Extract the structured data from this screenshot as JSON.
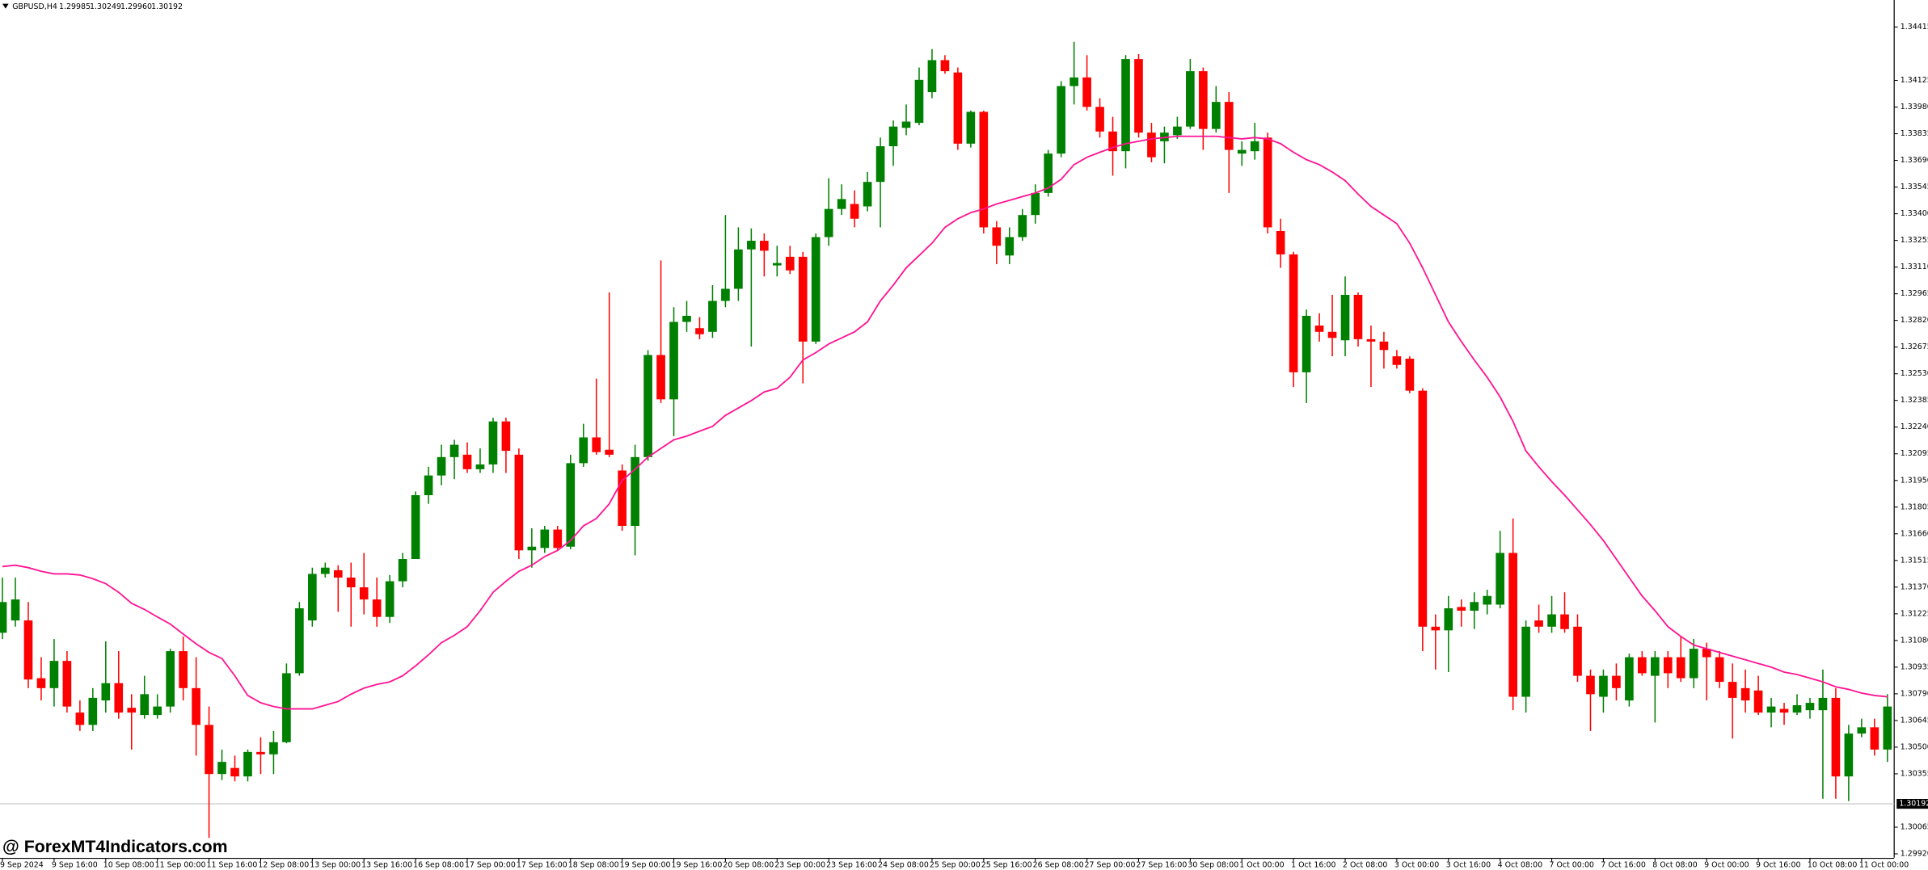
{
  "chart_data": {
    "type": "candlestick",
    "symbol": "GBPUSD,H4",
    "header_values": [
      "1.29985",
      "1.30249",
      "1.29960",
      "1.30192"
    ],
    "watermark": "@ ForexMT4Indicators.com",
    "up_color": "#008000",
    "down_color": "#ff0000",
    "categories": [
      "9 Sep 2024",
      null,
      null,
      null,
      "9 Sep 16:00",
      null,
      null,
      null,
      "10 Sep 08:00",
      null,
      null,
      null,
      "11 Sep 00:00",
      null,
      null,
      null,
      "11 Sep 16:00",
      null,
      null,
      null,
      "12 Sep 08:00",
      null,
      null,
      null,
      "13 Sep 00:00",
      null,
      null,
      null,
      "13 Sep 16:00",
      null,
      null,
      null,
      "16 Sep 08:00",
      null,
      null,
      null,
      "17 Sep 00:00",
      null,
      null,
      null,
      "17 Sep 16:00",
      null,
      null,
      null,
      "18 Sep 08:00",
      null,
      null,
      null,
      "19 Sep 00:00",
      null,
      null,
      null,
      "19 Sep 16:00",
      null,
      null,
      null,
      "20 Sep 08:00",
      null,
      null,
      null,
      "23 Sep 00:00",
      null,
      null,
      null,
      "23 Sep 16:00",
      null,
      null,
      null,
      "24 Sep 08:00",
      null,
      null,
      null,
      "25 Sep 00:00",
      null,
      null,
      null,
      "25 Sep 16:00",
      null,
      null,
      null,
      "26 Sep 08:00",
      null,
      null,
      null,
      "27 Sep 00:00",
      null,
      null,
      null,
      "27 Sep 16:00",
      null,
      null,
      null,
      "30 Sep 08:00",
      null,
      null,
      null,
      "1 Oct 00:00",
      null,
      null,
      null,
      "1 Oct 16:00",
      null,
      null,
      null,
      "2 Oct 08:00",
      null,
      null,
      null,
      "3 Oct 00:00",
      null,
      null,
      null,
      "3 Oct 16:00",
      null,
      null,
      null,
      "4 Oct 08:00",
      null,
      null,
      null,
      "7 Oct 00:00",
      null,
      null,
      null,
      "7 Oct 16:00",
      null,
      null,
      null,
      "8 Oct 08:00",
      null,
      null,
      null,
      "9 Oct 00:00",
      null,
      null,
      null,
      "9 Oct 16:00",
      null,
      null,
      null,
      "10 Oct 08:00",
      null,
      null,
      null,
      "11 Oct 00:00",
      null,
      null
    ],
    "open": [
      1.31122,
      1.31189,
      1.31189,
      1.30875,
      1.30821,
      1.30969,
      1.30688,
      1.30621,
      1.30754,
      1.30848,
      1.30714,
      1.30675,
      1.30675,
      1.30721,
      1.31022,
      1.30821,
      1.30621,
      1.30354,
      1.30387,
      1.30341,
      1.30474,
      1.30461,
      1.30527,
      1.30902,
      1.31189,
      1.31442,
      1.31462,
      1.31422,
      1.31369,
      1.31303,
      1.31208,
      1.31402,
      1.31523,
      1.3187,
      1.31977,
      1.32077,
      1.3209,
      1.32011,
      1.32037,
      1.32271,
      1.3209,
      1.3157,
      1.31583,
      1.31683,
      1.3159,
      1.32044,
      1.32184,
      1.32117,
      1.32004,
      1.31703,
      1.32077,
      1.32632,
      1.32391,
      1.32812,
      1.32778,
      1.32758,
      1.32926,
      1.32992,
      1.33206,
      1.33253,
      1.33119,
      1.33166,
      1.33166,
      1.32705,
      1.33273,
      1.33426,
      1.33453,
      1.3344,
      1.33573,
      1.33767,
      1.33867,
      1.33894,
      1.34061,
      1.34235,
      1.34168,
      1.33781,
      1.33954,
      1.33326,
      1.33173,
      1.33273,
      1.33393,
      1.33513,
      1.33727,
      1.34094,
      1.34141,
      1.33981,
      1.33847,
      1.3374,
      1.34241,
      1.33841,
      1.33794,
      1.33827,
      1.33874,
      1.34175,
      1.33861,
      1.34008,
      1.33727,
      1.3374,
      1.33814,
      1.33306,
      1.33179,
      1.32538,
      1.32792,
      1.32758,
      1.32712,
      1.32959,
      1.32718,
      1.32705,
      1.32625,
      1.32612,
      1.32438,
      1.31155,
      1.31135,
      1.31262,
      1.31242,
      1.31275,
      1.31275,
      1.31556,
      1.30774,
      1.31189,
      1.31155,
      1.31222,
      1.31155,
      1.30888,
      1.30774,
      1.30888,
      1.30754,
      1.30989,
      1.30888,
      1.30989,
      1.30989,
      1.30875,
      1.31035,
      1.30989,
      1.30855,
      1.30821,
      1.30808,
      1.30688,
      1.30708,
      1.30688,
      1.30701,
      1.30701,
      1.30768,
      1.30341,
      1.30574,
      1.30608,
      1.30487
    ],
    "high": [
      1.31422,
      1.31422,
      1.31289,
      1.30989,
      1.31088,
      1.31022,
      1.30754,
      1.30821,
      1.31075,
      1.31022,
      1.30788,
      1.30888,
      1.30788,
      1.31035,
      1.31102,
      1.30989,
      1.30721,
      1.30487,
      1.30454,
      1.30487,
      1.30554,
      1.30588,
      1.30955,
      1.31289,
      1.31476,
      1.31503,
      1.31489,
      1.31503,
      1.31556,
      1.31422,
      1.31436,
      1.31556,
      1.3189,
      1.32024,
      1.32144,
      1.32171,
      1.32157,
      1.32124,
      1.32291,
      1.32291,
      1.32124,
      1.3169,
      1.31703,
      1.31703,
      1.3209,
      1.32258,
      1.32504,
      1.32972,
      1.32037,
      1.32144,
      1.32659,
      1.33146,
      1.32892,
      1.32926,
      1.32838,
      1.33012,
      1.33393,
      1.33326,
      1.3332,
      1.33293,
      1.33226,
      1.33226,
      1.33193,
      1.33293,
      1.33593,
      1.3356,
      1.33527,
      1.33627,
      1.33814,
      1.33907,
      1.33994,
      1.34195,
      1.34295,
      1.34262,
      1.34195,
      1.33961,
      1.33961,
      1.3336,
      1.33326,
      1.33426,
      1.3356,
      1.33747,
      1.34121,
      1.34335,
      1.34262,
      1.34028,
      1.33927,
      1.34262,
      1.34268,
      1.33894,
      1.33874,
      1.33927,
      1.34241,
      1.34195,
      1.34094,
      1.34061,
      1.33794,
      1.33894,
      1.33841,
      1.33373,
      1.33193,
      1.32879,
      1.32859,
      1.32959,
      1.33059,
      1.32972,
      1.32792,
      1.32758,
      1.32659,
      1.32625,
      1.32451,
      1.31222,
      1.31322,
      1.31303,
      1.31342,
      1.31356,
      1.31676,
      1.31743,
      1.31189,
      1.31275,
      1.31322,
      1.31342,
      1.31222,
      1.30922,
      1.30922,
      1.30955,
      1.31008,
      1.31022,
      1.31022,
      1.31022,
      1.31102,
      1.31088,
      1.31068,
      1.31022,
      1.30955,
      1.30922,
      1.30888,
      1.30768,
      1.30741,
      1.30788,
      1.30768,
      1.30922,
      1.30821,
      1.30621,
      1.30655,
      1.30655,
      1.30788
    ],
    "low": [
      1.31088,
      1.31155,
      1.30821,
      1.30754,
      1.30721,
      1.30688,
      1.30588,
      1.30588,
      1.30688,
      1.30655,
      1.30487,
      1.30655,
      1.30655,
      1.30688,
      1.30754,
      1.30454,
      1.30007,
      1.30321,
      1.30314,
      1.30314,
      1.30354,
      1.30354,
      1.30521,
      1.30888,
      1.31155,
      1.31422,
      1.31236,
      1.31155,
      1.31222,
      1.31155,
      1.31175,
      1.31369,
      1.31523,
      1.31823,
      1.31924,
      1.31957,
      1.31991,
      1.31991,
      1.31991,
      1.31991,
      1.31523,
      1.31476,
      1.31556,
      1.3157,
      1.31576,
      1.32024,
      1.3209,
      1.32077,
      1.31676,
      1.31543,
      1.32057,
      1.32371,
      1.32191,
      1.32758,
      1.32718,
      1.32725,
      1.32892,
      1.32926,
      1.32678,
      1.33059,
      1.33059,
      1.33072,
      1.32478,
      1.32692,
      1.33226,
      1.33393,
      1.33326,
      1.33413,
      1.33326,
      1.3366,
      1.33827,
      1.33881,
      1.34028,
      1.34161,
      1.33747,
      1.3376,
      1.33293,
      1.33126,
      1.33126,
      1.33253,
      1.33346,
      1.33493,
      1.33707,
      1.33994,
      1.33961,
      1.33814,
      1.33607,
      1.33647,
      1.33814,
      1.3368,
      1.33674,
      1.33807,
      1.33861,
      1.33747,
      1.33841,
      1.33513,
      1.3366,
      1.33694,
      1.33293,
      1.33106,
      1.32458,
      1.32371,
      1.32705,
      1.32625,
      1.32625,
      1.32678,
      1.32458,
      1.32558,
      1.32558,
      1.32424,
      1.31022,
      1.30922,
      1.30908,
      1.31155,
      1.31142,
      1.31222,
      1.31255,
      1.30701,
      1.30688,
      1.31122,
      1.31122,
      1.31122,
      1.30855,
      1.30588,
      1.30688,
      1.30754,
      1.30721,
      1.30888,
      1.30634,
      1.30821,
      1.30855,
      1.30821,
      1.30754,
      1.30821,
      1.30547,
      1.30688,
      1.30675,
      1.30608,
      1.30621,
      1.30675,
      1.30655,
      1.3022,
      1.3022,
      1.30207,
      1.30554,
      1.30454,
      1.3042
    ],
    "close": [
      1.31289,
      1.31303,
      1.30868,
      1.30821,
      1.30969,
      1.30721,
      1.30621,
      1.30768,
      1.30848,
      1.30688,
      1.30688,
      1.30788,
      1.30721,
      1.31022,
      1.30821,
      1.30621,
      1.30354,
      1.3042,
      1.30341,
      1.30474,
      1.30461,
      1.30527,
      1.30902,
      1.31255,
      1.31442,
      1.31476,
      1.31422,
      1.31369,
      1.31303,
      1.31208,
      1.31402,
      1.31523,
      1.3187,
      1.31977,
      1.32077,
      1.32144,
      1.32011,
      1.32037,
      1.32271,
      1.32111,
      1.3157,
      1.3159,
      1.31683,
      1.31583,
      1.32044,
      1.32184,
      1.32104,
      1.3209,
      1.31703,
      1.32077,
      1.32632,
      1.32391,
      1.32812,
      1.32845,
      1.32745,
      1.32926,
      1.32992,
      1.33206,
      1.33253,
      1.33199,
      1.33132,
      1.33092,
      1.32705,
      1.33273,
      1.33426,
      1.3348,
      1.33373,
      1.33573,
      1.33767,
      1.33874,
      1.33901,
      1.34128,
      1.34235,
      1.34175,
      1.33781,
      1.33954,
      1.33326,
      1.33226,
      1.33273,
      1.33393,
      1.33513,
      1.33727,
      1.34094,
      1.34141,
      1.33981,
      1.33847,
      1.3374,
      1.34241,
      1.33841,
      1.33707,
      1.33841,
      1.33874,
      1.34175,
      1.33861,
      1.34008,
      1.33747,
      1.33747,
      1.33794,
      1.33326,
      1.33179,
      1.32538,
      1.32845,
      1.32758,
      1.32725,
      1.32959,
      1.32718,
      1.32705,
      1.32659,
      1.32578,
      1.32438,
      1.31155,
      1.31135,
      1.31255,
      1.31242,
      1.31289,
      1.31322,
      1.31556,
      1.30774,
      1.31155,
      1.31155,
      1.31222,
      1.31142,
      1.30888,
      1.30788,
      1.30888,
      1.30821,
      1.30989,
      1.30902,
      1.30989,
      1.30902,
      1.30875,
      1.31035,
      1.30989,
      1.30855,
      1.30768,
      1.30754,
      1.30688,
      1.30721,
      1.30688,
      1.30728,
      1.30741,
      1.30768,
      1.30341,
      1.30574,
      1.30608,
      1.30487,
      1.30721
    ],
    "ma": {
      "color": "#ff1493",
      "values": [
        1.31482,
        1.31489,
        1.31476,
        1.31456,
        1.31442,
        1.31442,
        1.31436,
        1.31416,
        1.31389,
        1.31342,
        1.31282,
        1.31249,
        1.31208,
        1.31169,
        1.31115,
        1.31062,
        1.31015,
        1.30982,
        1.30888,
        1.30781,
        1.30741,
        1.30721,
        1.30708,
        1.30708,
        1.30708,
        1.30728,
        1.30748,
        1.30788,
        1.30821,
        1.30841,
        1.30855,
        1.30888,
        1.30942,
        1.31002,
        1.31068,
        1.31108,
        1.31155,
        1.31242,
        1.31342,
        1.31402,
        1.31456,
        1.31489,
        1.31536,
        1.3157,
        1.31623,
        1.31703,
        1.31743,
        1.31823,
        1.3195,
        1.32011,
        1.32077,
        1.32124,
        1.32171,
        1.32191,
        1.32218,
        1.32244,
        1.32304,
        1.32344,
        1.32384,
        1.32431,
        1.32451,
        1.32511,
        1.32605,
        1.32645,
        1.32692,
        1.32725,
        1.32758,
        1.32812,
        1.32926,
        1.33012,
        1.33106,
        1.33173,
        1.3324,
        1.33326,
        1.33373,
        1.33406,
        1.33426,
        1.33453,
        1.33473,
        1.33493,
        1.33513,
        1.3354,
        1.33587,
        1.33667,
        1.33707,
        1.33734,
        1.3376,
        1.33781,
        1.33794,
        1.33807,
        1.33814,
        1.33821,
        1.33821,
        1.33821,
        1.33821,
        1.33814,
        1.33807,
        1.33814,
        1.33807,
        1.33781,
        1.33734,
        1.33694,
        1.33667,
        1.33627,
        1.3358,
        1.33507,
        1.3344,
        1.33393,
        1.33346,
        1.3324,
        1.33106,
        1.32959,
        1.32812,
        1.32705,
        1.32605,
        1.32511,
        1.32404,
        1.32271,
        1.32111,
        1.32024,
        1.31944,
        1.3187,
        1.3179,
        1.3171,
        1.31623,
        1.31523,
        1.31422,
        1.31322,
        1.31242,
        1.31155,
        1.31102,
        1.31055,
        1.31035,
        1.31015,
        1.30995,
        1.30975,
        1.30955,
        1.30935,
        1.30908,
        1.30895,
        1.30875,
        1.30855,
        1.30828,
        1.30814,
        1.30794,
        1.30781,
        1.30774
      ]
    },
    "bid": {
      "value": 1.30192,
      "label": "1.30192"
    },
    "ylim": [
      1.29899,
      1.34562
    ],
    "yticks": [
      1.34415,
      1.34125,
      {
        "value": 1.3398,
        "label": "1.33980"
      },
      1.33835,
      {
        "value": 1.3369,
        "label": "1.33690"
      },
      1.33545,
      {
        "value": 1.334,
        "label": "1.33400"
      },
      1.33255,
      {
        "value": 1.3311,
        "label": "1.33110"
      },
      1.32965,
      {
        "value": 1.3282,
        "label": "1.32820"
      },
      1.32675,
      {
        "value": 1.3253,
        "label": "1.32530"
      },
      1.32385,
      {
        "value": 1.3224,
        "label": "1.32240"
      },
      1.32095,
      {
        "value": 1.3195,
        "label": "1.31950"
      },
      1.31805,
      {
        "value": 1.3166,
        "label": "1.31660"
      },
      1.31515,
      {
        "value": 1.3137,
        "label": "1.31370"
      },
      1.31225,
      {
        "value": 1.3108,
        "label": "1.31080"
      },
      1.30935,
      {
        "value": 1.3079,
        "label": "1.30790"
      },
      1.30645,
      {
        "value": 1.305,
        "label": "1.30500"
      },
      1.30355,
      1.30065,
      {
        "value": 1.2992,
        "label": "1.29920"
      }
    ]
  }
}
